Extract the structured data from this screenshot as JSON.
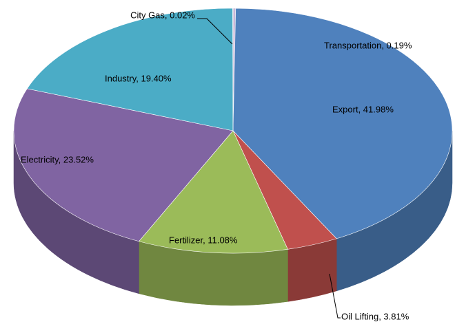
{
  "chart_data": {
    "type": "pie",
    "values": [
      0.19,
      41.98,
      3.81,
      11.08,
      23.52,
      19.4,
      0.02
    ],
    "value_labels": [
      "Transportation, 0.19%",
      "Export, 41.98%",
      "Oil Lifting, 3.81%",
      "Fertilizer, 11.08%",
      "Electricity, 23.52%",
      "Industry, 19.40%",
      "City Gas, 0.02%"
    ],
    "colors": [
      "#c9b8d8",
      "#4f81bd",
      "#c0504d",
      "#9bbb59",
      "#8064a2",
      "#4bacc6",
      "#f79646"
    ]
  }
}
